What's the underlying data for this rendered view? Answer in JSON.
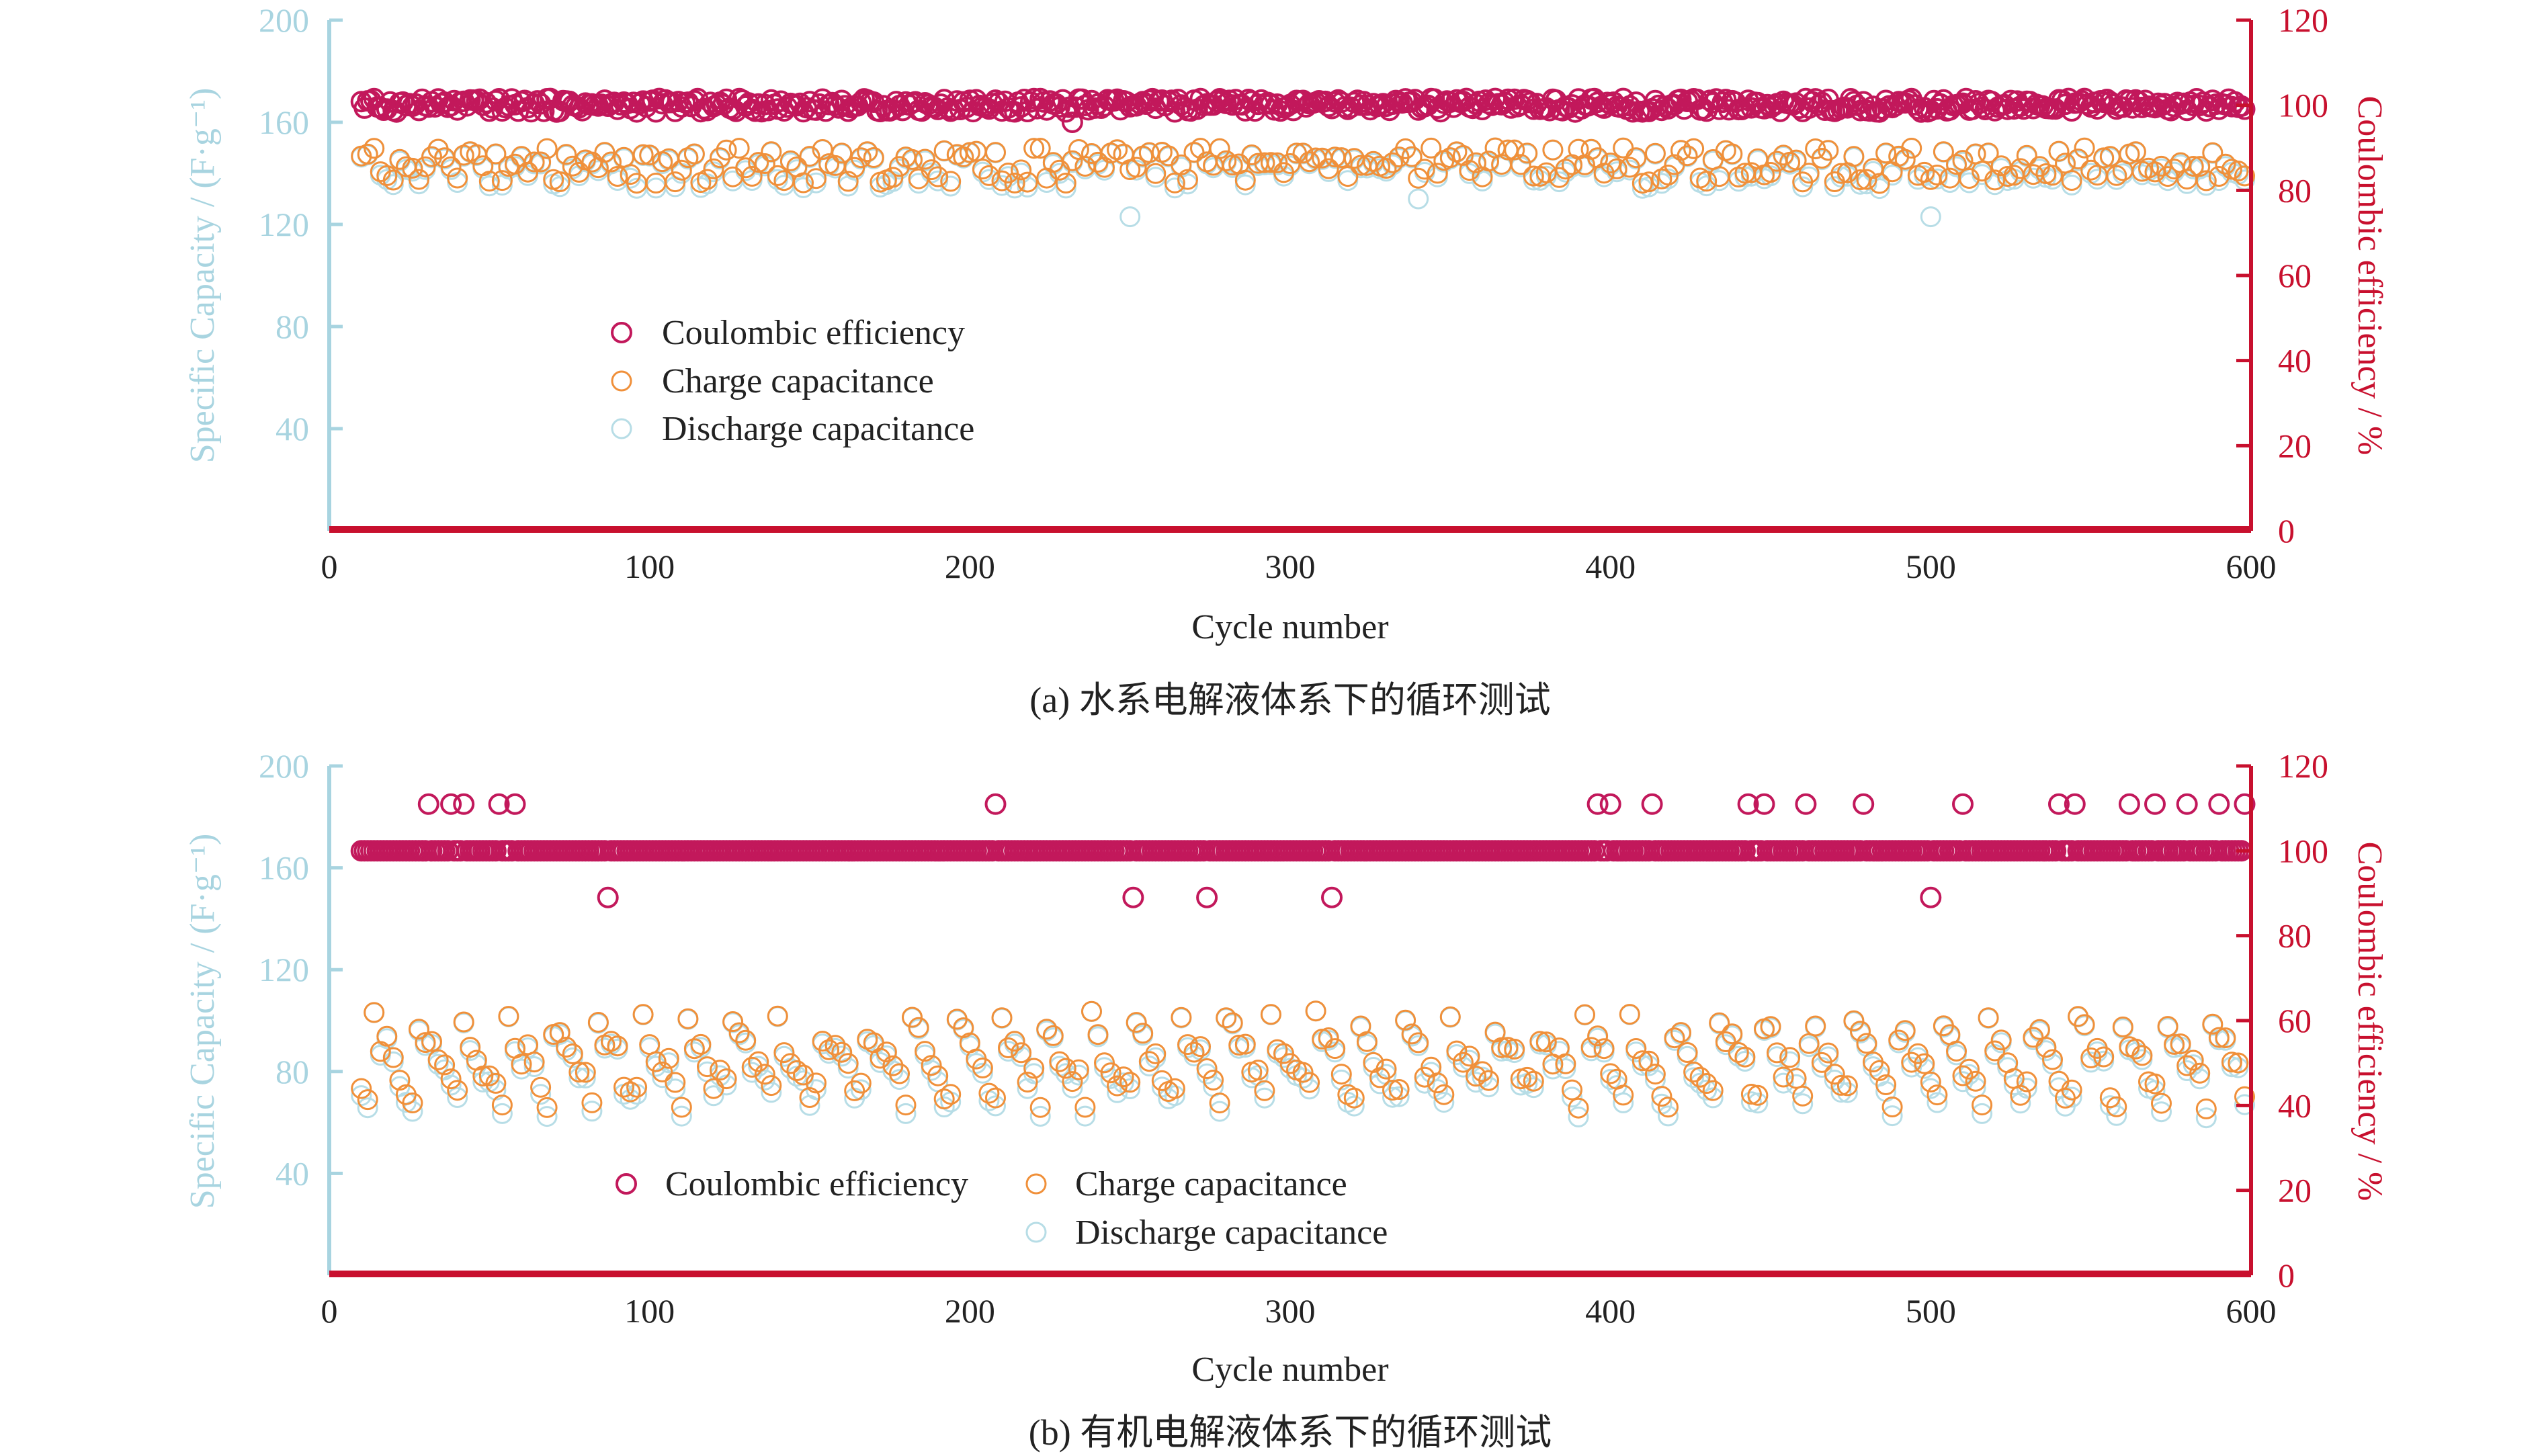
{
  "colors": {
    "left_axis": "#a8d4e0",
    "right_axis": "#c8102e",
    "text": "#222222",
    "coulombic": "#c2185b",
    "charge": "#f0903a",
    "discharge": "#b7dde6"
  },
  "chart_data": [
    {
      "id": "a",
      "type": "scatter",
      "caption": "(a) 水系电解液体系下的循环测试",
      "xlabel": "Cycle number",
      "ylabel_left": "Specific Capacity / (F·g⁻¹)",
      "ylabel_right": "Coulombic efficiency / %",
      "xlim": [
        0,
        600
      ],
      "ylim_left": [
        0,
        200
      ],
      "ylim_right": [
        0,
        120
      ],
      "xticks": [
        0,
        100,
        200,
        300,
        400,
        500,
        600
      ],
      "yticks_left": [
        40,
        80,
        120,
        160,
        200
      ],
      "yticks_right": [
        0,
        20,
        40,
        60,
        80,
        100,
        120
      ],
      "legend": {
        "position": "center-left",
        "entries": [
          "Coulombic efficiency",
          "Charge capacitance",
          "Discharge capacitance"
        ]
      },
      "series": [
        {
          "name": "Coulombic efficiency",
          "axis": "right",
          "x_step": 1,
          "x_start": 10,
          "x_end": 598,
          "base": 100,
          "ripple": 1.6,
          "outliers": [
            [
              232,
              96
            ]
          ]
        },
        {
          "name": "Charge capacitance",
          "axis": "left",
          "x_step": 2,
          "x_start": 10,
          "x_end": 598,
          "base": 143,
          "ripple": 7
        },
        {
          "name": "Discharge capacitance",
          "axis": "left",
          "x_step": 2,
          "x_start": 10,
          "x_end": 598,
          "base": 142,
          "ripple": 8,
          "outliers": [
            [
              250,
              123
            ],
            [
              500,
              123
            ],
            [
              340,
              130
            ]
          ]
        }
      ]
    },
    {
      "id": "b",
      "type": "scatter",
      "caption": "(b) 有机电解液体系下的循环测试",
      "xlabel": "Cycle number",
      "ylabel_left": "Specific Capacity / (F·g⁻¹)",
      "ylabel_right": "Coulombic efficiency / %",
      "xlim": [
        0,
        600
      ],
      "ylim_left": [
        0,
        200
      ],
      "ylim_right": [
        0,
        120
      ],
      "xticks": [
        0,
        100,
        200,
        300,
        400,
        500,
        600
      ],
      "yticks_left": [
        40,
        80,
        120,
        160,
        200
      ],
      "yticks_right": [
        0,
        20,
        40,
        60,
        80,
        100,
        120
      ],
      "legend": {
        "position": "bottom-left",
        "entries": [
          "Coulombic efficiency",
          "Charge capacitance",
          "Discharge capacitance"
        ]
      },
      "series": [
        {
          "name": "Coulombic efficiency",
          "axis": "right",
          "x_step": 1,
          "x_start": 10,
          "x_end": 598,
          "base": 100,
          "ripple": 0,
          "outliers": [
            [
              31,
              111
            ],
            [
              38,
              111
            ],
            [
              42,
              111
            ],
            [
              53,
              111
            ],
            [
              58,
              111
            ],
            [
              87,
              89
            ],
            [
              208,
              111
            ],
            [
              251,
              89
            ],
            [
              274,
              89
            ],
            [
              313,
              89
            ],
            [
              396,
              111
            ],
            [
              400,
              111
            ],
            [
              413,
              111
            ],
            [
              443,
              111
            ],
            [
              448,
              111
            ],
            [
              461,
              111
            ],
            [
              479,
              111
            ],
            [
              500,
              89
            ],
            [
              510,
              111
            ],
            [
              540,
              111
            ],
            [
              545,
              111
            ],
            [
              562,
              111
            ],
            [
              570,
              111
            ],
            [
              580,
              111
            ],
            [
              590,
              111
            ],
            [
              598,
              111
            ]
          ]
        },
        {
          "name": "Charge capacitance",
          "axis": "left",
          "x_step": 2,
          "x_start": 10,
          "x_end": 598,
          "base": 82,
          "ripple": 22
        },
        {
          "name": "Discharge capacitance",
          "axis": "left",
          "x_step": 2,
          "x_start": 10,
          "x_end": 598,
          "base": 80,
          "ripple": 24
        }
      ]
    }
  ]
}
